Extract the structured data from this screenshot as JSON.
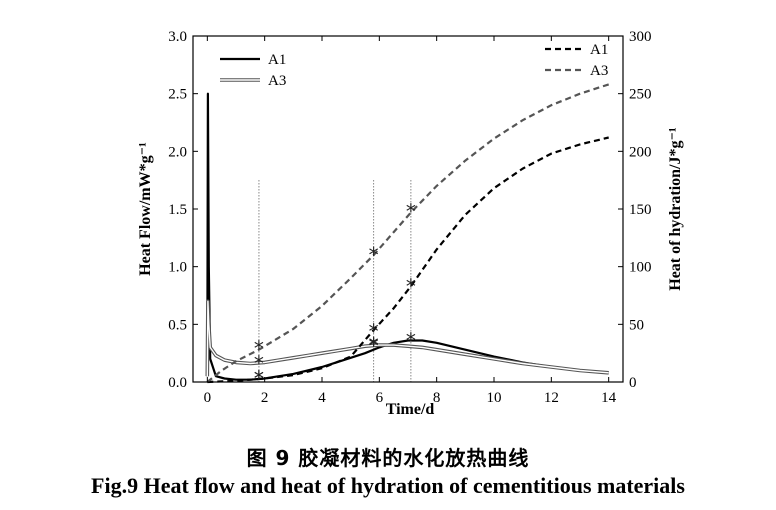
{
  "figure": {
    "caption_cn": "图 9  胶凝材料的水化放热曲线",
    "caption_en": "Fig.9 Heat flow and heat of hydration of cementitious materials"
  },
  "chart_data": {
    "type": "line",
    "title": "",
    "xlabel": "Time/d",
    "ylabel_left": "Heat Flow/mW*g⁻¹",
    "ylabel_right": "Heat of hydration/J*g⁻¹",
    "xlim": [
      -0.5,
      14.5
    ],
    "ylim_left": [
      0,
      3.0
    ],
    "ylim_right": [
      0,
      300
    ],
    "x_ticks": [
      0,
      2,
      4,
      6,
      8,
      10,
      12,
      14
    ],
    "x_tick_labels": [
      "0",
      "2",
      "4",
      "6",
      "8",
      "10",
      "12",
      "14"
    ],
    "yleft_ticks": [
      0,
      0.5,
      1.0,
      1.5,
      2.0,
      2.5,
      3.0
    ],
    "yleft_tick_labels": [
      "0.0",
      "0.5",
      "1.0",
      "1.5",
      "2.0",
      "2.5",
      "3.0"
    ],
    "yright_ticks": [
      0,
      50,
      100,
      150,
      200,
      250,
      300
    ],
    "yright_tick_labels": [
      "0",
      "50",
      "100",
      "150",
      "200",
      "250",
      "300"
    ],
    "grid": false,
    "colors": {
      "A1": "#000000",
      "A3": "#555555",
      "A3_inner": "#ffffff",
      "reference_line": "#888888"
    },
    "legend_left": {
      "placement": "top-left",
      "entries": [
        "A1",
        "A3"
      ]
    },
    "legend_right": {
      "placement": "top-right",
      "entries": [
        "A1",
        "A3"
      ]
    },
    "reference_x": [
      1.8,
      5.8,
      7.1
    ],
    "series": [
      {
        "name": "A1",
        "kind": "heat_flow",
        "axis": "left",
        "style": "solid",
        "x": [
          0.0,
          0.02,
          0.05,
          0.1,
          0.3,
          0.6,
          1.0,
          1.5,
          2.0,
          2.5,
          3.0,
          3.5,
          4.0,
          4.5,
          5.0,
          5.5,
          6.0,
          6.5,
          7.0,
          7.5,
          8.0,
          9.0,
          10.0,
          11.0,
          12.0,
          13.0,
          14.0
        ],
        "values": [
          0.05,
          2.5,
          1.0,
          0.2,
          0.05,
          0.03,
          0.02,
          0.02,
          0.03,
          0.05,
          0.07,
          0.1,
          0.13,
          0.17,
          0.21,
          0.25,
          0.3,
          0.34,
          0.36,
          0.36,
          0.34,
          0.28,
          0.22,
          0.17,
          0.13,
          0.1,
          0.08
        ]
      },
      {
        "name": "A3",
        "kind": "heat_flow",
        "axis": "left",
        "style": "double",
        "x": [
          0.0,
          0.02,
          0.05,
          0.1,
          0.3,
          0.6,
          1.0,
          1.5,
          2.0,
          2.5,
          3.0,
          3.5,
          4.0,
          4.5,
          5.0,
          5.5,
          6.0,
          6.5,
          7.0,
          7.5,
          8.0,
          9.0,
          10.0,
          11.0,
          12.0,
          13.0,
          14.0
        ],
        "values": [
          0.05,
          0.7,
          0.5,
          0.3,
          0.23,
          0.19,
          0.17,
          0.16,
          0.17,
          0.19,
          0.21,
          0.23,
          0.25,
          0.27,
          0.29,
          0.31,
          0.32,
          0.32,
          0.31,
          0.3,
          0.28,
          0.24,
          0.2,
          0.16,
          0.13,
          0.1,
          0.08
        ]
      },
      {
        "name": "A1",
        "kind": "heat_of_hydration",
        "axis": "right",
        "style": "dashed",
        "x": [
          0,
          1,
          2,
          3,
          4,
          5,
          5.8,
          6.5,
          7.1,
          8,
          9,
          10,
          11,
          12,
          13,
          14
        ],
        "values": [
          0,
          1,
          3,
          6,
          12,
          22,
          45,
          64,
          83,
          115,
          145,
          168,
          185,
          198,
          206,
          212
        ]
      },
      {
        "name": "A3",
        "kind": "heat_of_hydration",
        "axis": "right",
        "style": "dashed",
        "x": [
          0,
          0.5,
          1,
          1.8,
          3,
          4,
          5,
          5.8,
          6.5,
          7.1,
          8,
          9,
          10,
          11,
          12,
          13,
          14
        ],
        "values": [
          0,
          10,
          18,
          28,
          46,
          66,
          90,
          110,
          130,
          147,
          170,
          192,
          211,
          227,
          240,
          250,
          258
        ]
      }
    ],
    "markers": [
      {
        "series": "A1",
        "kind": "heat_flow",
        "x": 1.8,
        "y": 0.03
      },
      {
        "series": "A1",
        "kind": "heat_flow",
        "x": 5.8,
        "y": 0.31
      },
      {
        "series": "A1",
        "kind": "heat_flow",
        "x": 7.1,
        "y": 0.36
      },
      {
        "series": "A3",
        "kind": "heat_flow",
        "x": 1.8,
        "y": 0.16
      },
      {
        "series": "A3",
        "kind": "heat_flow",
        "x": 5.8,
        "y": 0.32
      },
      {
        "series": "A1",
        "kind": "heat_of_hydration",
        "x": 1.8,
        "y": 3
      },
      {
        "series": "A1",
        "kind": "heat_of_hydration",
        "x": 5.8,
        "y": 44
      },
      {
        "series": "A1",
        "kind": "heat_of_hydration",
        "x": 7.1,
        "y": 83
      },
      {
        "series": "A3",
        "kind": "heat_of_hydration",
        "x": 1.8,
        "y": 29
      },
      {
        "series": "A3",
        "kind": "heat_of_hydration",
        "x": 5.8,
        "y": 110
      },
      {
        "series": "A3",
        "kind": "heat_of_hydration",
        "x": 7.1,
        "y": 148
      }
    ]
  }
}
